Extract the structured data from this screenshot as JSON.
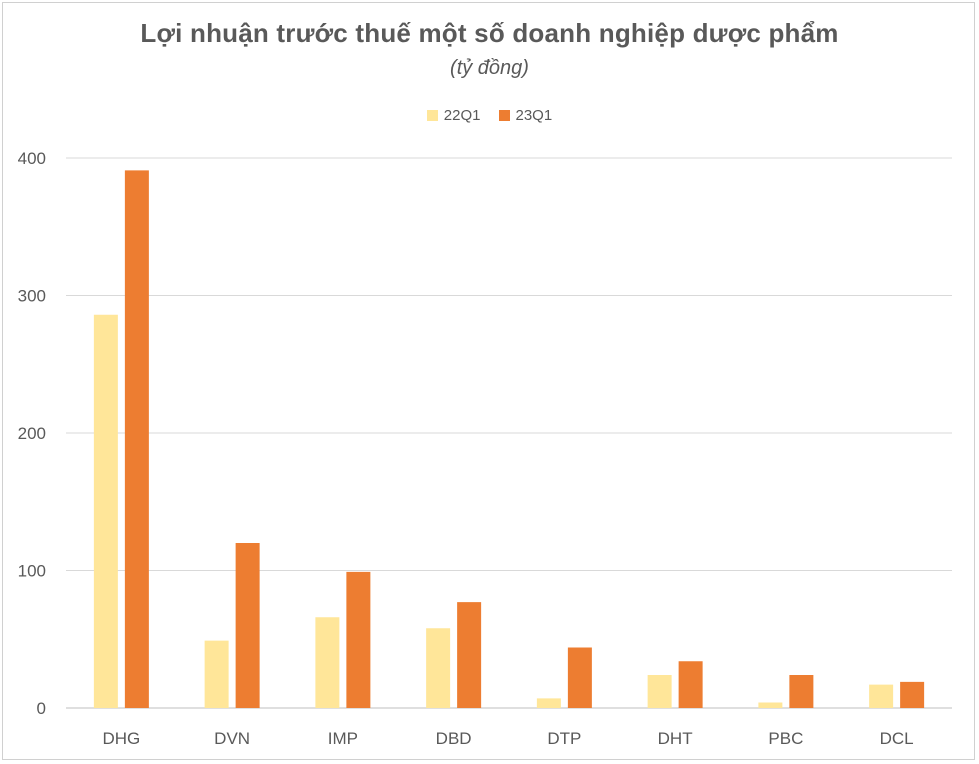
{
  "chart_data": {
    "type": "bar",
    "title": "Lợi nhuận trước thuế một số doanh nghiệp dược phẩm",
    "subtitle": "(tỷ đồng)",
    "categories": [
      "DHG",
      "DVN",
      "IMP",
      "DBD",
      "DTP",
      "DHT",
      "PBC",
      "DCL"
    ],
    "series": [
      {
        "name": "22Q1",
        "color": "#ffe699",
        "values": [
          286,
          49,
          66,
          58,
          7,
          24,
          4,
          17
        ]
      },
      {
        "name": "23Q1",
        "color": "#ed7d31",
        "values": [
          391,
          120,
          99,
          77,
          44,
          34,
          24,
          19
        ]
      }
    ],
    "yticks": [
      0,
      100,
      200,
      300,
      400
    ],
    "ylim": [
      0,
      400
    ],
    "grid": true,
    "legend_position": "top-center"
  }
}
